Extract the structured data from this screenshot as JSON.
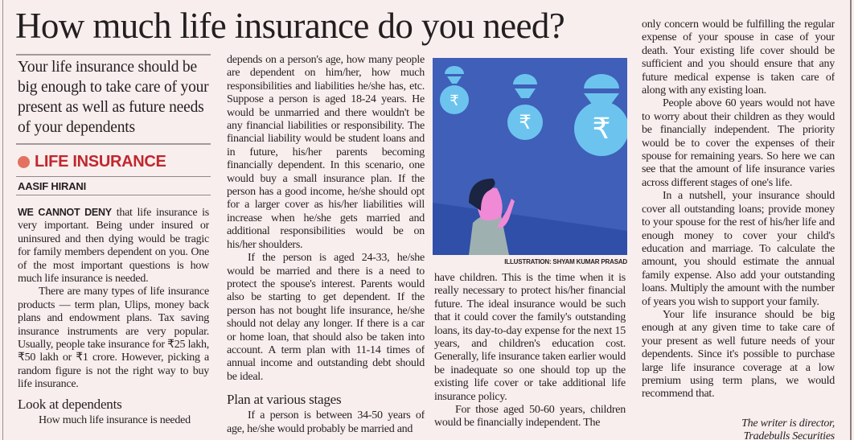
{
  "article": {
    "headline": "How much life insurance do you need?",
    "deck": "Your life insurance should be big enough to take care of your present as well as future needs of your dependents",
    "kicker": "LIFE INSURANCE",
    "byline": "AASIF HIRANI",
    "illustration_caption": "ILLUSTRATION: SHYAM KUMAR PRASAD",
    "illustration_icons": [
      "person-looking-up",
      "money-bag-parachute-umbrella-rupee"
    ],
    "colors": {
      "kicker": "#c0272d",
      "kicker_dot": "#e2725f",
      "illustration_bg": "#3f5fb8",
      "bags": "#6cc4ee"
    },
    "col1": {
      "lead": "WE CANNOT DENY",
      "p1": " that life insurance is very important. Being under insured or uninsured and then dying would be tragic for family members dependent on you. One of the most important questions is how much life insurance is needed.",
      "p2": "There are many types of life insurance products — term plan, Ulips, money back plans and endowment plans. Tax saving insurance instruments are very popular. Usually, people take insurance for ₹25 lakh, ₹50 lakh or ₹1 crore. However, picking a random figure is not the right way to buy life insurance.",
      "subhead": "Look at dependents",
      "p3": "How much life insurance is needed"
    },
    "col2": {
      "p1": "depends on a person's age, how many people are dependent on him/her, how much responsibilities and liabilities he/she has, etc. Suppose a person is aged 18-24 years. He would be unmarried and there wouldn't be any financial liabilities or responsibility. The financial liability would be student loans and in future, his/her parents becoming financially dependent. In this scenario, one would buy a small insurance plan. If the person has a good income, he/she should opt for a larger cover as his/her liabilities will increase when he/she gets married and additional responsibilities would be on his/her shoulders.",
      "p2": "If the person is aged 24-33, he/she would be married and there is a need to protect the spouse's interest. Parents would also be starting to get dependent. If the person has not bought life insurance, he/she should not delay any longer. If there is a car or home loan, that should also be taken into account. A term plan with 11-14 times of annual income and outstanding debt should be ideal.",
      "subhead": "Plan at various stages",
      "p3": "If a person is between 34-50 years of age, he/she would probably be married and"
    },
    "col3": {
      "p1": "have children. This is the time when it is really necessary to protect his/her financial future. The ideal insurance would be such that it could cover the family's outstanding loans, its day-to-day expense for the next 15 years, and children's education cost. Generally, life insurance taken earlier would be inadequate so one should top up the existing life cover or take additional life insurance policy.",
      "p2": "For those aged 50-60 years, children would be financially independent. The"
    },
    "col4": {
      "p1": "only concern would be fulfilling the regular expense of your spouse in case of your death. Your existing life cover should be sufficient and you should ensure that any future medical expense is taken care of along with any existing loan.",
      "p2": "People above 60 years would not have to worry about their children as they would be financially independent. The priority would be to cover the expenses of their spouse for remaining years. So here we can see that the amount of life insurance varies across different stages of one's life.",
      "p3": "In a nutshell, your insurance should cover all outstanding loans; provide money to your spouse for the rest of his/her life and enough money to cover your child's education and marriage. To calculate the amount, you should estimate the annual family expense. Also add your outstanding loans. Multiply the amount with the number of years you wish to support your family.",
      "p4": "Your life insurance should be big enough at any given time to take care of your present as well future needs of your dependents. Since it's possible to purchase large life insurance coverage at a low premium using term plans, we would recommend that.",
      "sig1": "The writer is director,",
      "sig2": "Tradebulls Securities"
    }
  }
}
